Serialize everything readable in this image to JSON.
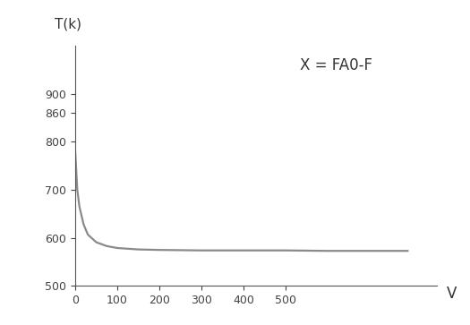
{
  "chart_data": {
    "type": "line",
    "y_label": "T(k)",
    "x_label": "V",
    "annotation": "X = FA0-F",
    "x": [
      0,
      5,
      10,
      20,
      30,
      50,
      75,
      100,
      150,
      200,
      300,
      400,
      500,
      600,
      700,
      790
    ],
    "values": [
      780,
      700,
      665,
      628,
      607,
      591,
      583,
      579,
      576,
      575,
      574,
      574,
      574,
      573,
      573,
      573
    ],
    "color": "#8a8a8a",
    "xlim": [
      0,
      860
    ],
    "xticks": [
      0,
      100,
      200,
      300,
      400,
      500
    ],
    "ylim": [
      500,
      1000
    ],
    "yticks": [
      500,
      600,
      700,
      800,
      860,
      900
    ],
    "grid": false
  }
}
